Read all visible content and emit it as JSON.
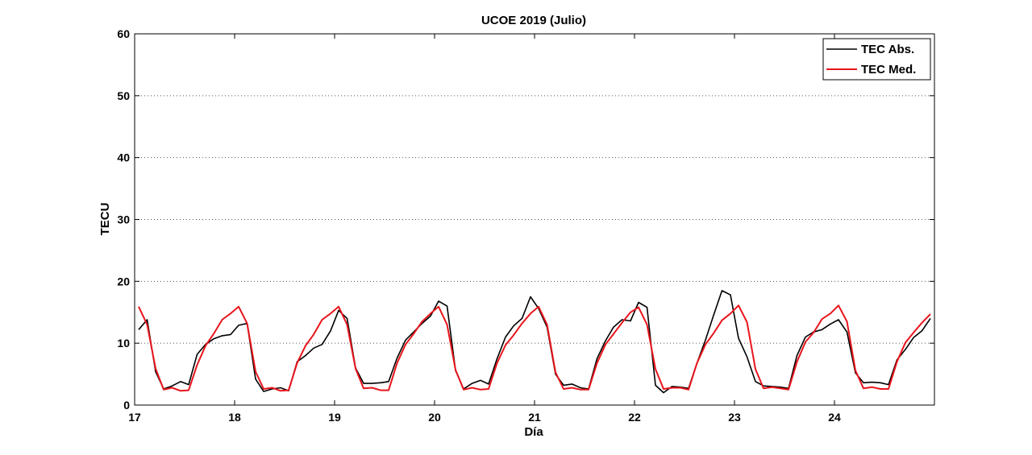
{
  "chart_data": {
    "type": "line",
    "title": "UCOE 2019 (Julio)",
    "xlabel": "Día",
    "ylabel": "TECU",
    "xlim": [
      17,
      25
    ],
    "ylim": [
      0,
      60
    ],
    "xticks": [
      17,
      18,
      19,
      20,
      21,
      22,
      23,
      24
    ],
    "yticks": [
      0,
      10,
      20,
      30,
      40,
      50,
      60
    ],
    "grid": "horizontal-dotted",
    "legend_position": "top-right",
    "series": [
      {
        "name": "TEC Abs.",
        "color": "#000000",
        "points": [
          [
            17.04,
            12.2
          ],
          [
            17.125,
            13.8
          ],
          [
            17.21,
            5.4
          ],
          [
            17.29,
            2.6
          ],
          [
            17.375,
            3.1
          ],
          [
            17.46,
            3.8
          ],
          [
            17.54,
            3.3
          ],
          [
            17.625,
            8.2
          ],
          [
            17.71,
            9.8
          ],
          [
            17.79,
            10.7
          ],
          [
            17.875,
            11.2
          ],
          [
            17.96,
            11.4
          ],
          [
            18.04,
            12.9
          ],
          [
            18.125,
            13.2
          ],
          [
            18.21,
            4.2
          ],
          [
            18.29,
            2.2
          ],
          [
            18.375,
            2.6
          ],
          [
            18.46,
            2.8
          ],
          [
            18.54,
            2.3
          ],
          [
            18.625,
            7.0
          ],
          [
            18.71,
            8.0
          ],
          [
            18.79,
            9.2
          ],
          [
            18.875,
            9.8
          ],
          [
            18.96,
            12.0
          ],
          [
            19.04,
            15.3
          ],
          [
            19.125,
            14.0
          ],
          [
            19.21,
            6.0
          ],
          [
            19.29,
            3.5
          ],
          [
            19.375,
            3.5
          ],
          [
            19.46,
            3.6
          ],
          [
            19.54,
            3.8
          ],
          [
            19.625,
            7.6
          ],
          [
            19.71,
            10.5
          ],
          [
            19.79,
            11.8
          ],
          [
            19.875,
            13.2
          ],
          [
            19.96,
            14.4
          ],
          [
            20.04,
            16.8
          ],
          [
            20.125,
            16.0
          ],
          [
            20.21,
            5.6
          ],
          [
            20.29,
            2.6
          ],
          [
            20.375,
            3.5
          ],
          [
            20.46,
            4.0
          ],
          [
            20.54,
            3.4
          ],
          [
            20.625,
            7.5
          ],
          [
            20.71,
            11.0
          ],
          [
            20.79,
            12.8
          ],
          [
            20.875,
            14.0
          ],
          [
            20.96,
            17.5
          ],
          [
            21.04,
            15.6
          ],
          [
            21.125,
            12.6
          ],
          [
            21.21,
            5.0
          ],
          [
            21.29,
            3.2
          ],
          [
            21.375,
            3.4
          ],
          [
            21.46,
            2.8
          ],
          [
            21.54,
            2.6
          ],
          [
            21.625,
            7.5
          ],
          [
            21.71,
            10.4
          ],
          [
            21.79,
            12.6
          ],
          [
            21.875,
            13.8
          ],
          [
            21.96,
            13.6
          ],
          [
            22.04,
            16.6
          ],
          [
            22.125,
            15.8
          ],
          [
            22.21,
            3.2
          ],
          [
            22.29,
            2.0
          ],
          [
            22.375,
            3.0
          ],
          [
            22.46,
            2.9
          ],
          [
            22.54,
            2.7
          ],
          [
            22.625,
            6.8
          ],
          [
            22.71,
            10.5
          ],
          [
            22.79,
            14.5
          ],
          [
            22.875,
            18.5
          ],
          [
            22.96,
            17.8
          ],
          [
            23.04,
            10.8
          ],
          [
            23.125,
            7.8
          ],
          [
            23.21,
            3.8
          ],
          [
            23.29,
            3.1
          ],
          [
            23.375,
            3.0
          ],
          [
            23.46,
            2.9
          ],
          [
            23.54,
            2.7
          ],
          [
            23.625,
            8.0
          ],
          [
            23.71,
            11.0
          ],
          [
            23.79,
            11.8
          ],
          [
            23.875,
            12.2
          ],
          [
            23.96,
            13.1
          ],
          [
            24.04,
            13.8
          ],
          [
            24.125,
            11.8
          ],
          [
            24.21,
            5.2
          ],
          [
            24.29,
            3.6
          ],
          [
            24.375,
            3.7
          ],
          [
            24.46,
            3.6
          ],
          [
            24.54,
            3.3
          ],
          [
            24.625,
            7.3
          ],
          [
            24.71,
            9.0
          ],
          [
            24.79,
            10.9
          ],
          [
            24.875,
            12.0
          ],
          [
            24.96,
            14.0
          ]
        ]
      },
      {
        "name": "TEC Med.",
        "color": "#e8141b",
        "points": [
          [
            17.04,
            15.9
          ],
          [
            17.125,
            13.0
          ],
          [
            17.21,
            5.9
          ],
          [
            17.29,
            2.5
          ],
          [
            17.375,
            2.8
          ],
          [
            17.46,
            2.3
          ],
          [
            17.54,
            2.4
          ],
          [
            17.625,
            6.5
          ],
          [
            17.71,
            9.6
          ],
          [
            17.79,
            11.5
          ],
          [
            17.875,
            13.8
          ],
          [
            17.96,
            14.8
          ],
          [
            18.04,
            15.9
          ],
          [
            18.125,
            13.2
          ],
          [
            18.21,
            5.4
          ],
          [
            18.29,
            2.6
          ],
          [
            18.375,
            2.8
          ],
          [
            18.46,
            2.3
          ],
          [
            18.54,
            2.4
          ],
          [
            18.625,
            6.8
          ],
          [
            18.71,
            9.6
          ],
          [
            18.79,
            11.4
          ],
          [
            18.875,
            13.8
          ],
          [
            18.96,
            14.8
          ],
          [
            19.04,
            15.9
          ],
          [
            19.125,
            13.0
          ],
          [
            19.21,
            5.9
          ],
          [
            19.29,
            2.7
          ],
          [
            19.375,
            2.8
          ],
          [
            19.46,
            2.4
          ],
          [
            19.54,
            2.4
          ],
          [
            19.625,
            6.8
          ],
          [
            19.71,
            9.8
          ],
          [
            19.79,
            11.5
          ],
          [
            19.875,
            13.5
          ],
          [
            19.96,
            14.8
          ],
          [
            20.04,
            15.9
          ],
          [
            20.125,
            13.0
          ],
          [
            20.21,
            5.7
          ],
          [
            20.29,
            2.5
          ],
          [
            20.375,
            2.8
          ],
          [
            20.46,
            2.5
          ],
          [
            20.54,
            2.6
          ],
          [
            20.625,
            6.8
          ],
          [
            20.71,
            9.7
          ],
          [
            20.79,
            11.3
          ],
          [
            20.875,
            13.2
          ],
          [
            20.96,
            14.8
          ],
          [
            21.04,
            15.9
          ],
          [
            21.125,
            13.0
          ],
          [
            21.21,
            5.3
          ],
          [
            21.29,
            2.6
          ],
          [
            21.375,
            2.8
          ],
          [
            21.46,
            2.5
          ],
          [
            21.54,
            2.5
          ],
          [
            21.625,
            6.8
          ],
          [
            21.71,
            9.8
          ],
          [
            21.79,
            11.5
          ],
          [
            21.875,
            13.3
          ],
          [
            21.96,
            15.0
          ],
          [
            22.04,
            15.8
          ],
          [
            22.125,
            13.0
          ],
          [
            22.21,
            5.8
          ],
          [
            22.29,
            2.6
          ],
          [
            22.375,
            2.8
          ],
          [
            22.46,
            2.8
          ],
          [
            22.54,
            2.5
          ],
          [
            22.625,
            6.8
          ],
          [
            22.71,
            9.8
          ],
          [
            22.79,
            11.6
          ],
          [
            22.875,
            13.7
          ],
          [
            22.96,
            14.8
          ],
          [
            23.04,
            16.1
          ],
          [
            23.125,
            13.4
          ],
          [
            23.21,
            5.8
          ],
          [
            23.29,
            2.7
          ],
          [
            23.375,
            2.9
          ],
          [
            23.46,
            2.7
          ],
          [
            23.54,
            2.5
          ],
          [
            23.625,
            7.0
          ],
          [
            23.71,
            10.2
          ],
          [
            23.79,
            11.7
          ],
          [
            23.875,
            13.9
          ],
          [
            23.96,
            14.8
          ],
          [
            24.04,
            16.1
          ],
          [
            24.125,
            13.5
          ],
          [
            24.21,
            5.6
          ],
          [
            24.29,
            2.7
          ],
          [
            24.375,
            2.9
          ],
          [
            24.46,
            2.6
          ],
          [
            24.54,
            2.6
          ],
          [
            24.625,
            7.0
          ],
          [
            24.71,
            10.1
          ],
          [
            24.79,
            11.7
          ],
          [
            24.875,
            13.3
          ],
          [
            24.96,
            14.7
          ]
        ]
      }
    ]
  }
}
